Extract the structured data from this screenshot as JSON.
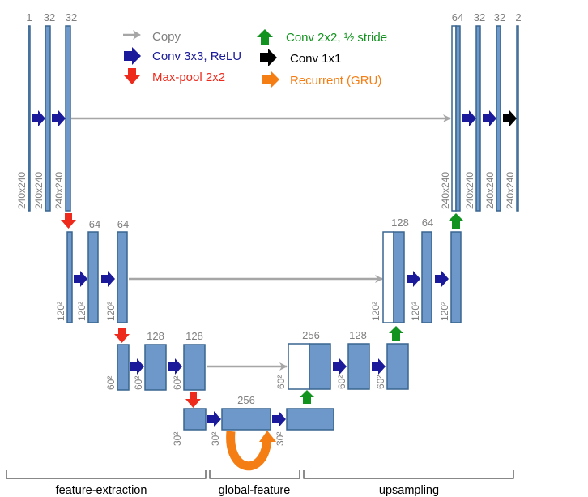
{
  "legend": {
    "copy": "Copy",
    "conv3": "Conv 3x3, ReLU",
    "maxpool": "Max-pool 2x2",
    "upconv": "Conv 2x2, ½ stride",
    "conv1": "Conv 1x1",
    "recurrent": "Recurrent (GRU)"
  },
  "colors": {
    "copy": "#a6a6a6",
    "conv3": "#1a1a9a",
    "maxpool": "#ee2a1c",
    "upconv": "#12921e",
    "conv1": "#000000",
    "recurrent": "#f57e14",
    "block": "#6d98c9"
  },
  "channels": {
    "l1_a": "1",
    "l1_b": "32",
    "l1_c": "32",
    "l2_a": "64",
    "l2_b": "64",
    "l3_a": "128",
    "l3_b": "128",
    "bottleneck": "256",
    "u3": "256",
    "u3_b": "128",
    "u2": "128",
    "u2_b": "64",
    "u1": "64",
    "u1_b": "32",
    "u1_c": "32",
    "out": "2"
  },
  "dims": {
    "l1": "240x240",
    "l2": "120²",
    "l3": "60²",
    "l4": "30²"
  },
  "sections": {
    "left": "feature-extraction",
    "middle": "global-feature",
    "right": "upsampling"
  }
}
